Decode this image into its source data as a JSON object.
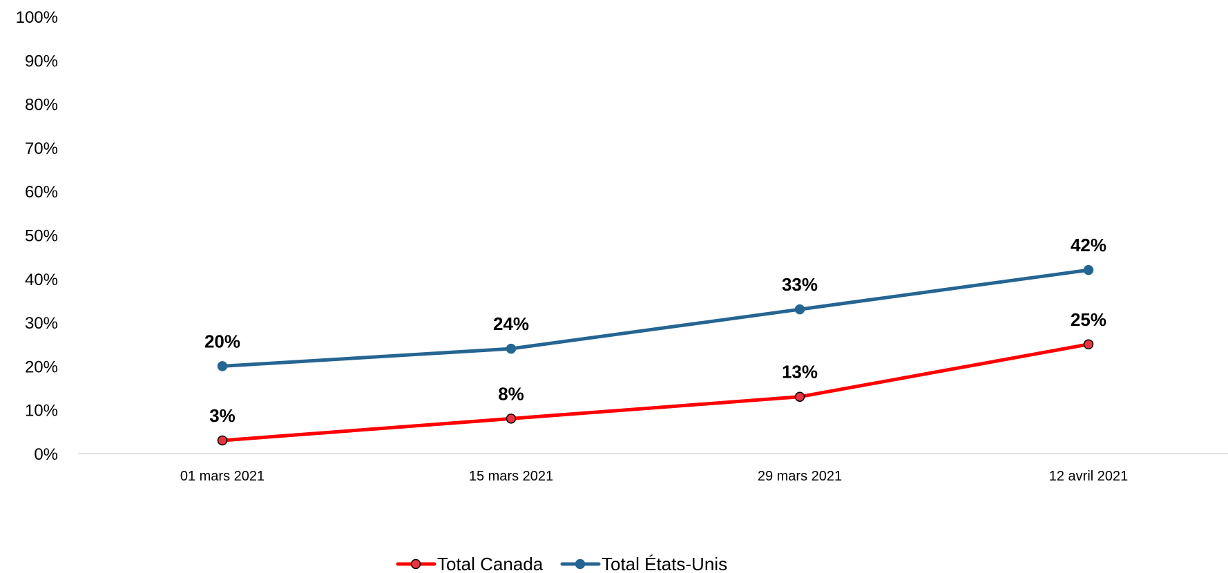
{
  "chart_data": {
    "type": "line",
    "title": "",
    "xlabel": "",
    "ylabel": "",
    "categories": [
      "01 mars 2021",
      "15 mars 2021",
      "29 mars 2021",
      "12 avril 2021"
    ],
    "ylim": [
      0,
      100
    ],
    "yticks": [
      {
        "value": 0,
        "label": "0%"
      },
      {
        "value": 10,
        "label": "10%"
      },
      {
        "value": 20,
        "label": "20%"
      },
      {
        "value": 30,
        "label": "30%"
      },
      {
        "value": 40,
        "label": "40%"
      },
      {
        "value": 50,
        "label": "50%"
      },
      {
        "value": 60,
        "label": "60%"
      },
      {
        "value": 70,
        "label": "70%"
      },
      {
        "value": 80,
        "label": "80%"
      },
      {
        "value": 90,
        "label": "90%"
      },
      {
        "value": 100,
        "label": "100%"
      }
    ],
    "grid": false,
    "legend_position": "bottom",
    "series": [
      {
        "name": "Total Canada",
        "color": "#ff0000",
        "marker_fill": "#e8343f",
        "marker_stroke": "#000000",
        "values": [
          3,
          8,
          13,
          25
        ],
        "labels": [
          "3%",
          "8%",
          "13%",
          "25%"
        ]
      },
      {
        "name": "Total États-Unis",
        "color": "#256592",
        "marker_fill": "#256592",
        "marker_stroke": "#256592",
        "values": [
          20,
          24,
          33,
          42
        ],
        "labels": [
          "20%",
          "24%",
          "33%",
          "42%"
        ]
      }
    ]
  }
}
